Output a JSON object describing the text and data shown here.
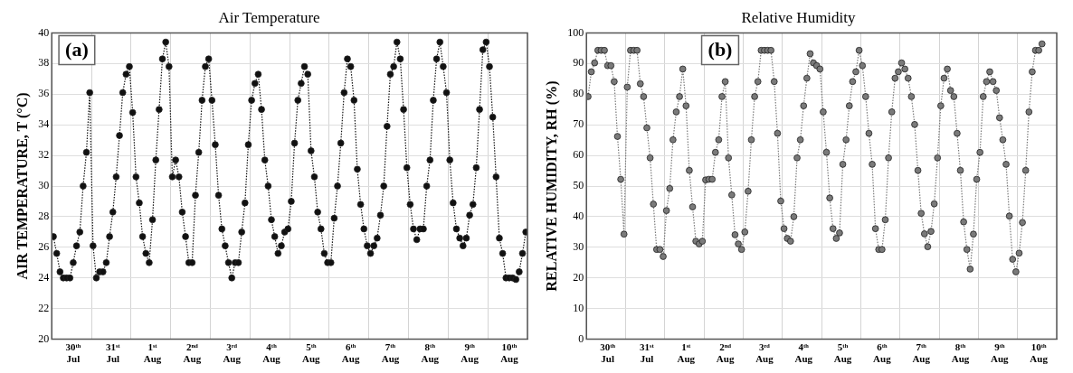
{
  "chart_data": [
    {
      "type": "line",
      "title": "Air Temperature",
      "ylabel": "AIR TEMPERATURE, T (°C)",
      "annotations": [
        "(a)"
      ],
      "marker": "circle",
      "line_style": "dotted",
      "grid": true,
      "color": "#111111",
      "ylim": [
        20,
        40
      ],
      "yticks": [
        20,
        22,
        24,
        26,
        28,
        30,
        32,
        34,
        36,
        38,
        40
      ],
      "categories": [
        null,
        null,
        null,
        null,
        null,
        null,
        "30ᵗʰ Jul",
        null,
        null,
        null,
        null,
        null,
        null,
        null,
        null,
        null,
        null,
        null,
        "31ˢᵗ Jul",
        null,
        null,
        null,
        null,
        null,
        null,
        null,
        null,
        null,
        null,
        null,
        "1ˢᵗ Aug",
        null,
        null,
        null,
        null,
        null,
        null,
        null,
        null,
        null,
        null,
        null,
        "2ⁿᵈ Aug",
        null,
        null,
        null,
        null,
        null,
        null,
        null,
        null,
        null,
        null,
        null,
        "3ʳᵈ Aug",
        null,
        null,
        null,
        null,
        null,
        null,
        null,
        null,
        null,
        null,
        null,
        "4ᵗʰ Aug",
        null,
        null,
        null,
        null,
        null,
        null,
        null,
        null,
        null,
        null,
        null,
        "5ᵗʰ Aug",
        null,
        null,
        null,
        null,
        null,
        null,
        null,
        null,
        null,
        null,
        null,
        "6ᵗʰ Aug",
        null,
        null,
        null,
        null,
        null,
        null,
        null,
        null,
        null,
        null,
        null,
        "7ᵗʰ Aug",
        null,
        null,
        null,
        null,
        null,
        null,
        null,
        null,
        null,
        null,
        null,
        "8ᵗʰ Aug",
        null,
        null,
        null,
        null,
        null,
        null,
        null,
        null,
        null,
        null,
        null,
        "9ᵗʰ Aug",
        null,
        null,
        null,
        null,
        null,
        null,
        null,
        null,
        null,
        null,
        null,
        "10ᵗʰ Aug",
        null,
        null,
        null,
        null,
        null
      ],
      "values": [
        26.7,
        25.6,
        24.4,
        24.0,
        24.0,
        24.0,
        25.0,
        26.1,
        27.0,
        30.0,
        32.2,
        36.1,
        26.1,
        24.0,
        24.4,
        24.4,
        25.0,
        26.7,
        28.3,
        30.6,
        33.3,
        36.1,
        37.3,
        37.8,
        34.8,
        30.6,
        28.9,
        26.7,
        25.6,
        25.0,
        27.8,
        31.7,
        35.0,
        38.3,
        39.4,
        37.8,
        30.6,
        31.7,
        30.6,
        28.3,
        26.7,
        25.0,
        25.0,
        29.4,
        32.2,
        35.6,
        37.8,
        38.3,
        35.6,
        32.7,
        29.4,
        27.2,
        26.1,
        25.0,
        24.0,
        25.0,
        25.0,
        27.0,
        28.9,
        32.7,
        35.6,
        36.7,
        37.3,
        35.0,
        31.7,
        30.0,
        27.8,
        26.7,
        25.6,
        26.1,
        27.0,
        27.2,
        29.0,
        32.8,
        35.6,
        36.7,
        37.8,
        37.3,
        32.3,
        30.6,
        28.3,
        27.2,
        25.6,
        25.0,
        25.0,
        27.9,
        30.0,
        32.8,
        36.1,
        38.3,
        37.8,
        35.6,
        31.1,
        28.8,
        27.2,
        26.1,
        25.6,
        26.1,
        26.6,
        28.1,
        30.0,
        33.9,
        37.3,
        37.8,
        39.4,
        38.3,
        35.0,
        31.2,
        28.8,
        27.2,
        26.5,
        27.2,
        27.2,
        30.0,
        31.7,
        35.6,
        38.3,
        39.4,
        37.8,
        36.1,
        31.7,
        28.9,
        27.2,
        26.6,
        26.1,
        26.6,
        28.1,
        28.8,
        31.2,
        35.0,
        38.9,
        39.4,
        37.8,
        34.5,
        30.6,
        26.6,
        25.6,
        24.0,
        24.0,
        24.0,
        23.9,
        24.4,
        25.6,
        27.0
      ]
    },
    {
      "type": "line",
      "title": "Relative Humidity",
      "ylabel": "RELATIVE HUMIDITY, RH (%)",
      "annotations": [
        "(b)"
      ],
      "marker": "circle",
      "line_style": "dotted",
      "grid": true,
      "color": "#7a7a7a",
      "ylim": [
        0,
        100
      ],
      "yticks": [
        0,
        10,
        20,
        30,
        40,
        50,
        60,
        70,
        80,
        90,
        100
      ],
      "categories": [
        null,
        null,
        null,
        null,
        null,
        null,
        "30ᵗʰ Jul",
        null,
        null,
        null,
        null,
        null,
        null,
        null,
        null,
        null,
        null,
        null,
        "31ˢᵗ Jul",
        null,
        null,
        null,
        null,
        null,
        null,
        null,
        null,
        null,
        null,
        null,
        "1ˢᵗ Aug",
        null,
        null,
        null,
        null,
        null,
        null,
        null,
        null,
        null,
        null,
        null,
        "2ⁿᵈ Aug",
        null,
        null,
        null,
        null,
        null,
        null,
        null,
        null,
        null,
        null,
        null,
        "3ʳᵈ Aug",
        null,
        null,
        null,
        null,
        null,
        null,
        null,
        null,
        null,
        null,
        null,
        "4ᵗʰ Aug",
        null,
        null,
        null,
        null,
        null,
        null,
        null,
        null,
        null,
        null,
        null,
        "5ᵗʰ Aug",
        null,
        null,
        null,
        null,
        null,
        null,
        null,
        null,
        null,
        null,
        null,
        "6ᵗʰ Aug",
        null,
        null,
        null,
        null,
        null,
        null,
        null,
        null,
        null,
        null,
        null,
        "7ᵗʰ Aug",
        null,
        null,
        null,
        null,
        null,
        null,
        null,
        null,
        null,
        null,
        null,
        "8ᵗʰ Aug",
        null,
        null,
        null,
        null,
        null,
        null,
        null,
        null,
        null,
        null,
        null,
        "9ᵗʰ Aug",
        null,
        null,
        null,
        null,
        null,
        null,
        null,
        null,
        null,
        null,
        null,
        "10ᵗʰ Aug",
        null,
        null,
        null,
        null,
        null
      ],
      "values": [
        79.2,
        87.3,
        90.2,
        94.3,
        94.3,
        94.3,
        89.3,
        89.3,
        84.1,
        66.2,
        52.2,
        34.3,
        82.3,
        94.3,
        94.3,
        94.3,
        83.4,
        79.2,
        69.0,
        59.2,
        44.1,
        29.3,
        29.3,
        27.0,
        42.0,
        49.2,
        65.1,
        74.2,
        79.2,
        88.2,
        76.2,
        55.1,
        43.2,
        32.0,
        31.1,
        32.0,
        52.0,
        52.2,
        52.2,
        61.0,
        65.1,
        79.2,
        84.1,
        59.2,
        47.1,
        34.1,
        31.1,
        29.3,
        35.0,
        48.3,
        65.1,
        79.2,
        84.1,
        94.3,
        94.3,
        94.3,
        94.3,
        84.1,
        67.2,
        45.1,
        36.1,
        32.9,
        32.0,
        40.0,
        59.2,
        65.1,
        76.2,
        85.2,
        93.2,
        90.2,
        89.3,
        88.2,
        74.2,
        61.0,
        46.1,
        36.1,
        32.9,
        34.7,
        57.1,
        65.1,
        76.2,
        84.1,
        87.3,
        94.3,
        89.3,
        79.2,
        67.2,
        57.1,
        36.1,
        29.3,
        29.3,
        39.0,
        59.2,
        74.2,
        85.2,
        87.3,
        90.2,
        88.2,
        85.2,
        79.2,
        70.1,
        55.1,
        41.1,
        34.4,
        30.2,
        35.2,
        44.2,
        59.2,
        76.2,
        85.2,
        88.2,
        81.2,
        79.2,
        67.2,
        55.1,
        38.3,
        29.3,
        22.9,
        34.3,
        52.2,
        61.0,
        79.2,
        84.1,
        87.3,
        84.1,
        81.2,
        72.3,
        65.1,
        57.1,
        40.2,
        26.1,
        22.0,
        28.1,
        38.1,
        55.1,
        74.2,
        87.3,
        94.3,
        94.3,
        96.4,
        null,
        null,
        null,
        null
      ]
    }
  ]
}
